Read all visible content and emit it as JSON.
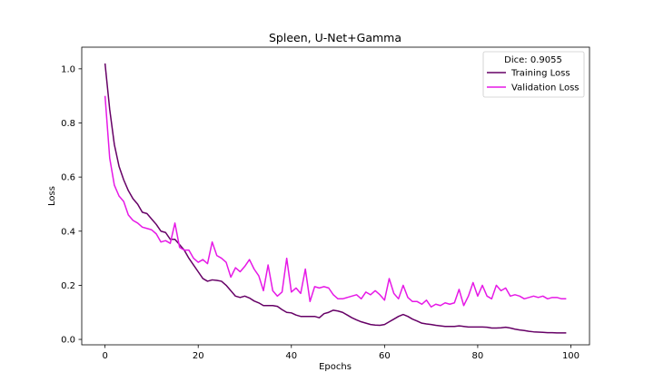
{
  "chart_data": {
    "type": "line",
    "title": "Spleen, U-Net+Gamma",
    "xlabel": "Epochs",
    "ylabel": "Loss",
    "xlim": [
      -5,
      104
    ],
    "ylim": [
      -0.02,
      1.08
    ],
    "xticks": [
      0,
      20,
      40,
      60,
      80,
      100
    ],
    "yticks": [
      0.0,
      0.2,
      0.4,
      0.6,
      0.8,
      1.0
    ],
    "grid": false,
    "legend": {
      "title": "Dice: 0.9055",
      "placement": "top-right"
    },
    "series": [
      {
        "name": "Training Loss",
        "color": "#660066",
        "x": [
          0,
          1,
          2,
          3,
          4,
          5,
          6,
          7,
          8,
          9,
          10,
          11,
          12,
          13,
          14,
          15,
          16,
          17,
          18,
          19,
          20,
          21,
          22,
          23,
          24,
          25,
          26,
          27,
          28,
          29,
          30,
          31,
          32,
          33,
          34,
          35,
          36,
          37,
          38,
          39,
          40,
          41,
          42,
          43,
          44,
          45,
          46,
          47,
          48,
          49,
          50,
          51,
          52,
          53,
          54,
          55,
          56,
          57,
          58,
          59,
          60,
          61,
          62,
          63,
          64,
          65,
          66,
          67,
          68,
          69,
          70,
          71,
          72,
          73,
          74,
          75,
          76,
          77,
          78,
          79,
          80,
          81,
          82,
          83,
          84,
          85,
          86,
          87,
          88,
          89,
          90,
          91,
          92,
          93,
          94,
          95,
          96,
          97,
          98,
          99
        ],
        "values": [
          1.02,
          0.85,
          0.72,
          0.64,
          0.59,
          0.55,
          0.52,
          0.5,
          0.47,
          0.465,
          0.445,
          0.425,
          0.4,
          0.395,
          0.37,
          0.37,
          0.35,
          0.33,
          0.3,
          0.275,
          0.25,
          0.225,
          0.215,
          0.22,
          0.218,
          0.215,
          0.2,
          0.18,
          0.16,
          0.155,
          0.16,
          0.153,
          0.142,
          0.135,
          0.125,
          0.125,
          0.125,
          0.122,
          0.11,
          0.1,
          0.098,
          0.09,
          0.085,
          0.085,
          0.085,
          0.085,
          0.08,
          0.095,
          0.1,
          0.108,
          0.105,
          0.1,
          0.09,
          0.08,
          0.072,
          0.065,
          0.06,
          0.055,
          0.053,
          0.052,
          0.055,
          0.065,
          0.075,
          0.085,
          0.092,
          0.085,
          0.075,
          0.068,
          0.06,
          0.057,
          0.055,
          0.052,
          0.05,
          0.048,
          0.048,
          0.048,
          0.05,
          0.048,
          0.046,
          0.046,
          0.046,
          0.046,
          0.045,
          0.042,
          0.042,
          0.043,
          0.045,
          0.042,
          0.038,
          0.035,
          0.033,
          0.03,
          0.028,
          0.027,
          0.026,
          0.025,
          0.025,
          0.024,
          0.024,
          0.024
        ]
      },
      {
        "name": "Validation Loss",
        "color": "#e619e6",
        "x": [
          0,
          1,
          2,
          3,
          4,
          5,
          6,
          7,
          8,
          9,
          10,
          11,
          12,
          13,
          14,
          15,
          16,
          17,
          18,
          19,
          20,
          21,
          22,
          23,
          24,
          25,
          26,
          27,
          28,
          29,
          30,
          31,
          32,
          33,
          34,
          35,
          36,
          37,
          38,
          39,
          40,
          41,
          42,
          43,
          44,
          45,
          46,
          47,
          48,
          49,
          50,
          51,
          52,
          53,
          54,
          55,
          56,
          57,
          58,
          59,
          60,
          61,
          62,
          63,
          64,
          65,
          66,
          67,
          68,
          69,
          70,
          71,
          72,
          73,
          74,
          75,
          76,
          77,
          78,
          79,
          80,
          81,
          82,
          83,
          84,
          85,
          86,
          87,
          88,
          89,
          90,
          91,
          92,
          93,
          94,
          95,
          96,
          97,
          98,
          99
        ],
        "values": [
          0.9,
          0.67,
          0.57,
          0.53,
          0.51,
          0.46,
          0.44,
          0.43,
          0.415,
          0.41,
          0.405,
          0.39,
          0.36,
          0.365,
          0.355,
          0.43,
          0.34,
          0.33,
          0.33,
          0.3,
          0.285,
          0.295,
          0.28,
          0.36,
          0.31,
          0.3,
          0.285,
          0.23,
          0.265,
          0.25,
          0.27,
          0.295,
          0.26,
          0.235,
          0.18,
          0.275,
          0.18,
          0.16,
          0.175,
          0.3,
          0.175,
          0.19,
          0.17,
          0.26,
          0.14,
          0.195,
          0.19,
          0.195,
          0.19,
          0.165,
          0.15,
          0.15,
          0.155,
          0.16,
          0.165,
          0.15,
          0.175,
          0.165,
          0.18,
          0.165,
          0.145,
          0.225,
          0.17,
          0.15,
          0.2,
          0.155,
          0.14,
          0.14,
          0.13,
          0.145,
          0.12,
          0.13,
          0.125,
          0.135,
          0.13,
          0.135,
          0.185,
          0.125,
          0.16,
          0.21,
          0.16,
          0.2,
          0.16,
          0.15,
          0.2,
          0.18,
          0.19,
          0.16,
          0.165,
          0.16,
          0.15,
          0.155,
          0.16,
          0.155,
          0.16,
          0.15,
          0.155,
          0.155,
          0.15,
          0.15
        ]
      }
    ]
  }
}
